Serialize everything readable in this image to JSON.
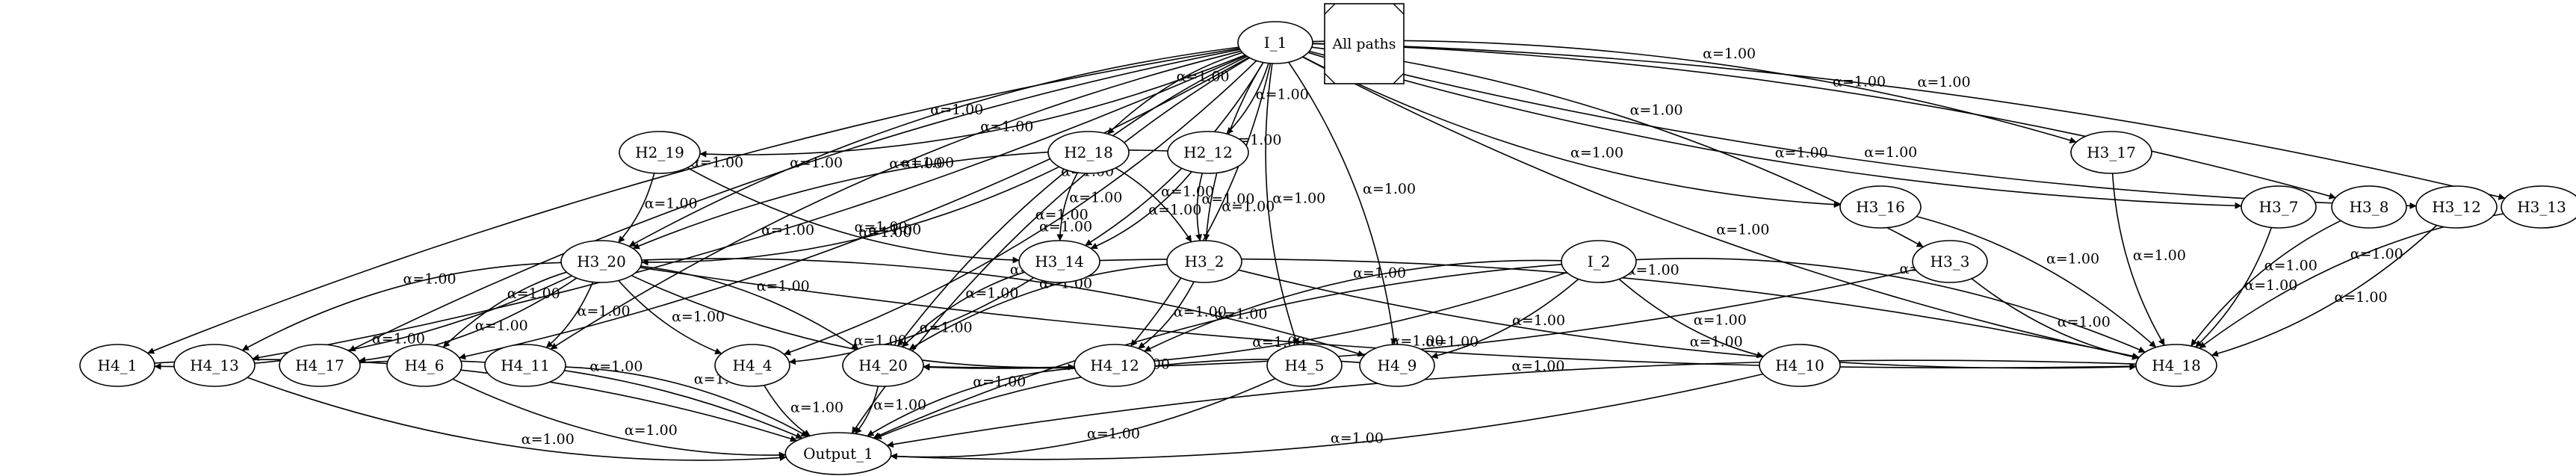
{
  "legend": {
    "label": "All paths"
  },
  "edge_label": "α=1.00",
  "nodes": [
    {
      "id": "I_1",
      "label": "I_1"
    },
    {
      "id": "I_2",
      "label": "I_2"
    },
    {
      "id": "H2_19",
      "label": "H2_19"
    },
    {
      "id": "H2_18",
      "label": "H2_18"
    },
    {
      "id": "H2_12",
      "label": "H2_12"
    },
    {
      "id": "H3_20",
      "label": "H3_20"
    },
    {
      "id": "H3_14",
      "label": "H3_14"
    },
    {
      "id": "H3_2",
      "label": "H3_2"
    },
    {
      "id": "H3_3",
      "label": "H3_3"
    },
    {
      "id": "H3_16",
      "label": "H3_16"
    },
    {
      "id": "H3_17",
      "label": "H3_17"
    },
    {
      "id": "H3_7",
      "label": "H3_7"
    },
    {
      "id": "H3_8",
      "label": "H3_8"
    },
    {
      "id": "H3_12",
      "label": "H3_12"
    },
    {
      "id": "H3_13",
      "label": "H3_13"
    },
    {
      "id": "H4_1",
      "label": "H4_1"
    },
    {
      "id": "H4_13",
      "label": "H4_13"
    },
    {
      "id": "H4_17",
      "label": "H4_17"
    },
    {
      "id": "H4_6",
      "label": "H4_6"
    },
    {
      "id": "H4_11",
      "label": "H4_11"
    },
    {
      "id": "H4_4",
      "label": "H4_4"
    },
    {
      "id": "H4_20",
      "label": "H4_20"
    },
    {
      "id": "H4_12",
      "label": "H4_12"
    },
    {
      "id": "H4_5",
      "label": "H4_5"
    },
    {
      "id": "H4_9",
      "label": "H4_9"
    },
    {
      "id": "H4_10",
      "label": "H4_10"
    },
    {
      "id": "H4_18",
      "label": "H4_18"
    },
    {
      "id": "Output_1",
      "label": "Output_1"
    }
  ],
  "edges": [
    {
      "from": "I_1",
      "to": "Output_1"
    },
    {
      "from": "I_1",
      "to": "H2_19"
    },
    {
      "from": "I_1",
      "to": "H2_18"
    },
    {
      "from": "I_1",
      "to": "H2_12"
    },
    {
      "from": "I_1",
      "to": "H3_20"
    },
    {
      "from": "I_1",
      "to": "H3_14"
    },
    {
      "from": "I_1",
      "to": "H3_2"
    },
    {
      "from": "I_1",
      "to": "H3_3"
    },
    {
      "from": "I_1",
      "to": "H3_16"
    },
    {
      "from": "I_1",
      "to": "H3_17"
    },
    {
      "from": "I_1",
      "to": "H3_7"
    },
    {
      "from": "I_1",
      "to": "H3_8"
    },
    {
      "from": "I_1",
      "to": "H3_12"
    },
    {
      "from": "I_1",
      "to": "H3_13"
    },
    {
      "from": "I_1",
      "to": "H4_1"
    },
    {
      "from": "I_1",
      "to": "H4_13"
    },
    {
      "from": "I_1",
      "to": "H4_17"
    },
    {
      "from": "I_1",
      "to": "H4_6"
    },
    {
      "from": "I_1",
      "to": "H4_11"
    },
    {
      "from": "I_1",
      "to": "H4_4"
    },
    {
      "from": "I_1",
      "to": "H4_20"
    },
    {
      "from": "I_1",
      "to": "H4_12"
    },
    {
      "from": "I_1",
      "to": "H4_5"
    },
    {
      "from": "I_1",
      "to": "H4_9"
    },
    {
      "from": "I_1",
      "to": "H4_18"
    },
    {
      "from": "H2_19",
      "to": "H3_20"
    },
    {
      "from": "H2_19",
      "to": "H3_14"
    },
    {
      "from": "H2_18",
      "to": "H3_20"
    },
    {
      "from": "H2_18",
      "to": "H3_14"
    },
    {
      "from": "H2_18",
      "to": "H3_2"
    },
    {
      "from": "H2_12",
      "to": "H3_20"
    },
    {
      "from": "H2_12",
      "to": "H3_14"
    },
    {
      "from": "H2_12",
      "to": "H3_2"
    },
    {
      "from": "H3_20",
      "to": "H4_1"
    },
    {
      "from": "H3_20",
      "to": "H4_13"
    },
    {
      "from": "H3_20",
      "to": "H4_17"
    },
    {
      "from": "H3_20",
      "to": "H4_6"
    },
    {
      "from": "H3_20",
      "to": "H4_11"
    },
    {
      "from": "H3_20",
      "to": "H4_4"
    },
    {
      "from": "H3_20",
      "to": "H4_20"
    },
    {
      "from": "H3_20",
      "to": "H4_12"
    },
    {
      "from": "H3_20",
      "to": "H4_9"
    },
    {
      "from": "H3_20",
      "to": "H4_18"
    },
    {
      "from": "H3_14",
      "to": "H4_4"
    },
    {
      "from": "H3_14",
      "to": "H4_20"
    },
    {
      "from": "H3_14",
      "to": "H4_18"
    },
    {
      "from": "H3_2",
      "to": "H4_20"
    },
    {
      "from": "H3_2",
      "to": "H4_12"
    },
    {
      "from": "H3_2",
      "to": "H4_18"
    },
    {
      "from": "H3_3",
      "to": "H4_20"
    },
    {
      "from": "H3_3",
      "to": "H4_18"
    },
    {
      "from": "H3_16",
      "to": "H4_18"
    },
    {
      "from": "H3_17",
      "to": "H4_18"
    },
    {
      "from": "H3_7",
      "to": "H4_18"
    },
    {
      "from": "H3_8",
      "to": "H4_18"
    },
    {
      "from": "H3_12",
      "to": "H4_18"
    },
    {
      "from": "H3_13",
      "to": "H4_18"
    },
    {
      "from": "I_2",
      "to": "H4_20"
    },
    {
      "from": "I_2",
      "to": "H4_12"
    },
    {
      "from": "I_2",
      "to": "H4_9"
    },
    {
      "from": "I_2",
      "to": "H4_10"
    },
    {
      "from": "I_2",
      "to": "H4_18"
    },
    {
      "from": "I_2",
      "to": "Output_1"
    },
    {
      "from": "H4_1",
      "to": "Output_1"
    },
    {
      "from": "H4_13",
      "to": "Output_1"
    },
    {
      "from": "H4_17",
      "to": "Output_1"
    },
    {
      "from": "H4_6",
      "to": "Output_1"
    },
    {
      "from": "H4_11",
      "to": "Output_1"
    },
    {
      "from": "H4_4",
      "to": "Output_1"
    },
    {
      "from": "H4_20",
      "to": "Output_1"
    },
    {
      "from": "H4_12",
      "to": "Output_1"
    },
    {
      "from": "H4_5",
      "to": "Output_1"
    },
    {
      "from": "H4_9",
      "to": "Output_1"
    },
    {
      "from": "H4_10",
      "to": "Output_1"
    },
    {
      "from": "H4_18",
      "to": "Output_1"
    }
  ]
}
